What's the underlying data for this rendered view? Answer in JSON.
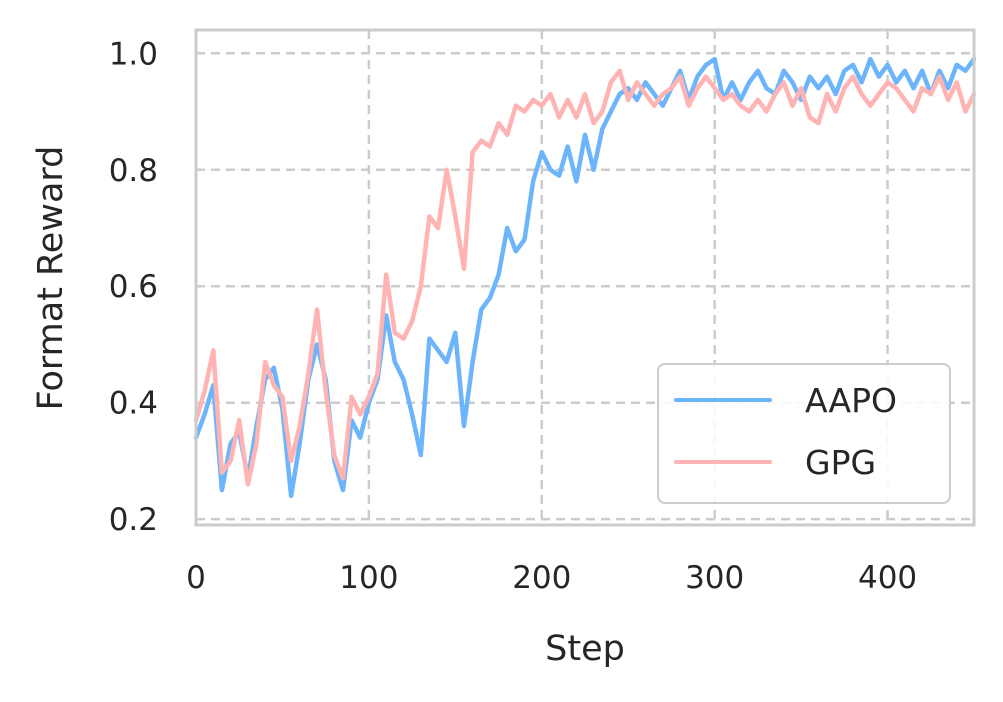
{
  "chart_data": {
    "type": "line",
    "title": "",
    "xlabel": "Step",
    "ylabel": "Format Reward",
    "xlim": [
      0,
      450
    ],
    "ylim": [
      0.19,
      1.04
    ],
    "xticks": [
      0,
      100,
      200,
      300,
      400
    ],
    "yticks": [
      0.2,
      0.4,
      0.6,
      0.8,
      1.0
    ],
    "xtick_labels": [
      "0",
      "100",
      "200",
      "300",
      "400"
    ],
    "ytick_labels": [
      "0.2",
      "0.4",
      "0.6",
      "0.8",
      "1.0"
    ],
    "grid": true,
    "legend_position": "bottom-right",
    "series": [
      {
        "name": "AAPO",
        "color": "#6cb4fc",
        "points": [
          [
            0,
            0.34
          ],
          [
            5,
            0.38
          ],
          [
            10,
            0.43
          ],
          [
            15,
            0.25
          ],
          [
            20,
            0.33
          ],
          [
            25,
            0.35
          ],
          [
            30,
            0.27
          ],
          [
            35,
            0.36
          ],
          [
            40,
            0.44
          ],
          [
            45,
            0.46
          ],
          [
            50,
            0.39
          ],
          [
            55,
            0.24
          ],
          [
            60,
            0.33
          ],
          [
            65,
            0.44
          ],
          [
            70,
            0.5
          ],
          [
            75,
            0.44
          ],
          [
            80,
            0.3
          ],
          [
            85,
            0.25
          ],
          [
            90,
            0.37
          ],
          [
            95,
            0.34
          ],
          [
            100,
            0.4
          ],
          [
            105,
            0.44
          ],
          [
            110,
            0.55
          ],
          [
            115,
            0.47
          ],
          [
            120,
            0.44
          ],
          [
            125,
            0.38
          ],
          [
            130,
            0.31
          ],
          [
            135,
            0.51
          ],
          [
            140,
            0.49
          ],
          [
            145,
            0.47
          ],
          [
            150,
            0.52
          ],
          [
            155,
            0.36
          ],
          [
            160,
            0.47
          ],
          [
            165,
            0.56
          ],
          [
            170,
            0.58
          ],
          [
            175,
            0.62
          ],
          [
            180,
            0.7
          ],
          [
            185,
            0.66
          ],
          [
            190,
            0.68
          ],
          [
            195,
            0.78
          ],
          [
            200,
            0.83
          ],
          [
            205,
            0.8
          ],
          [
            210,
            0.79
          ],
          [
            215,
            0.84
          ],
          [
            220,
            0.78
          ],
          [
            225,
            0.86
          ],
          [
            230,
            0.8
          ],
          [
            235,
            0.87
          ],
          [
            240,
            0.9
          ],
          [
            245,
            0.93
          ],
          [
            250,
            0.94
          ],
          [
            255,
            0.92
          ],
          [
            260,
            0.95
          ],
          [
            265,
            0.93
          ],
          [
            270,
            0.91
          ],
          [
            275,
            0.94
          ],
          [
            280,
            0.97
          ],
          [
            285,
            0.92
          ],
          [
            290,
            0.96
          ],
          [
            295,
            0.98
          ],
          [
            300,
            0.99
          ],
          [
            305,
            0.92
          ],
          [
            310,
            0.95
          ],
          [
            315,
            0.92
          ],
          [
            320,
            0.95
          ],
          [
            325,
            0.97
          ],
          [
            330,
            0.94
          ],
          [
            335,
            0.93
          ],
          [
            340,
            0.97
          ],
          [
            345,
            0.95
          ],
          [
            350,
            0.92
          ],
          [
            355,
            0.96
          ],
          [
            360,
            0.94
          ],
          [
            365,
            0.96
          ],
          [
            370,
            0.93
          ],
          [
            375,
            0.97
          ],
          [
            380,
            0.98
          ],
          [
            385,
            0.95
          ],
          [
            390,
            0.99
          ],
          [
            395,
            0.96
          ],
          [
            400,
            0.98
          ],
          [
            405,
            0.95
          ],
          [
            410,
            0.97
          ],
          [
            415,
            0.94
          ],
          [
            420,
            0.97
          ],
          [
            425,
            0.93
          ],
          [
            430,
            0.97
          ],
          [
            435,
            0.94
          ],
          [
            440,
            0.98
          ],
          [
            445,
            0.97
          ],
          [
            450,
            0.99
          ]
        ]
      },
      {
        "name": "GPG",
        "color": "#ffb3b3",
        "points": [
          [
            0,
            0.37
          ],
          [
            5,
            0.42
          ],
          [
            10,
            0.49
          ],
          [
            15,
            0.28
          ],
          [
            20,
            0.3
          ],
          [
            25,
            0.37
          ],
          [
            30,
            0.26
          ],
          [
            35,
            0.33
          ],
          [
            40,
            0.47
          ],
          [
            45,
            0.43
          ],
          [
            50,
            0.41
          ],
          [
            55,
            0.3
          ],
          [
            60,
            0.36
          ],
          [
            65,
            0.45
          ],
          [
            70,
            0.56
          ],
          [
            75,
            0.42
          ],
          [
            80,
            0.31
          ],
          [
            85,
            0.27
          ],
          [
            90,
            0.41
          ],
          [
            95,
            0.38
          ],
          [
            100,
            0.41
          ],
          [
            105,
            0.45
          ],
          [
            110,
            0.62
          ],
          [
            115,
            0.52
          ],
          [
            120,
            0.51
          ],
          [
            125,
            0.54
          ],
          [
            130,
            0.6
          ],
          [
            135,
            0.72
          ],
          [
            140,
            0.7
          ],
          [
            145,
            0.8
          ],
          [
            150,
            0.72
          ],
          [
            155,
            0.63
          ],
          [
            160,
            0.83
          ],
          [
            165,
            0.85
          ],
          [
            170,
            0.84
          ],
          [
            175,
            0.88
          ],
          [
            180,
            0.86
          ],
          [
            185,
            0.91
          ],
          [
            190,
            0.9
          ],
          [
            195,
            0.92
          ],
          [
            200,
            0.91
          ],
          [
            205,
            0.93
          ],
          [
            210,
            0.89
          ],
          [
            215,
            0.92
          ],
          [
            220,
            0.89
          ],
          [
            225,
            0.93
          ],
          [
            230,
            0.88
          ],
          [
            235,
            0.9
          ],
          [
            240,
            0.95
          ],
          [
            245,
            0.97
          ],
          [
            250,
            0.92
          ],
          [
            255,
            0.95
          ],
          [
            260,
            0.93
          ],
          [
            265,
            0.91
          ],
          [
            270,
            0.93
          ],
          [
            275,
            0.94
          ],
          [
            280,
            0.96
          ],
          [
            285,
            0.91
          ],
          [
            290,
            0.94
          ],
          [
            295,
            0.96
          ],
          [
            300,
            0.94
          ],
          [
            305,
            0.92
          ],
          [
            310,
            0.93
          ],
          [
            315,
            0.91
          ],
          [
            320,
            0.9
          ],
          [
            325,
            0.92
          ],
          [
            330,
            0.9
          ],
          [
            335,
            0.93
          ],
          [
            340,
            0.95
          ],
          [
            345,
            0.91
          ],
          [
            350,
            0.94
          ],
          [
            355,
            0.89
          ],
          [
            360,
            0.88
          ],
          [
            365,
            0.93
          ],
          [
            370,
            0.9
          ],
          [
            375,
            0.94
          ],
          [
            380,
            0.96
          ],
          [
            385,
            0.93
          ],
          [
            390,
            0.91
          ],
          [
            395,
            0.93
          ],
          [
            400,
            0.95
          ],
          [
            405,
            0.94
          ],
          [
            410,
            0.92
          ],
          [
            415,
            0.9
          ],
          [
            420,
            0.94
          ],
          [
            425,
            0.93
          ],
          [
            430,
            0.96
          ],
          [
            435,
            0.92
          ],
          [
            440,
            0.95
          ],
          [
            445,
            0.9
          ],
          [
            450,
            0.93
          ]
        ]
      }
    ]
  }
}
